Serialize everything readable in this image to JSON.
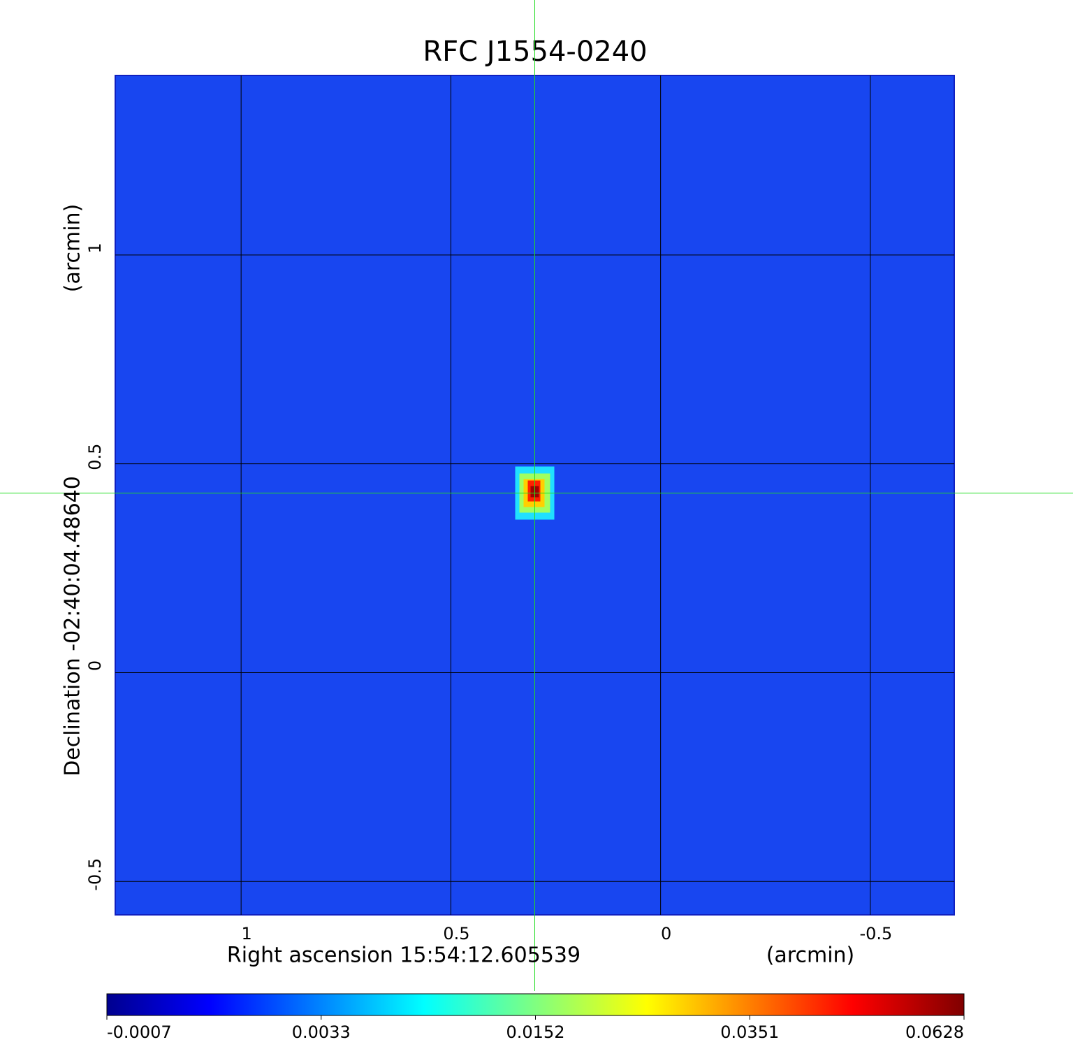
{
  "chart_data": {
    "type": "image",
    "title": "RFC J1554-0240",
    "title_color": "#1414d2",
    "x_label": "Right ascension  15:54:12.605539",
    "x_unit": "(arcmin)",
    "y_label": "Declination  -02:40:04.48640",
    "y_unit": "(arcmin)",
    "xlim": [
      1.3,
      -0.7
    ],
    "ylim": [
      -0.58,
      1.43
    ],
    "xticks": [
      1.0,
      0.5,
      0.0,
      -0.5
    ],
    "yticks": [
      1.0,
      0.5,
      0.0,
      -0.5
    ],
    "grid": true,
    "grid_color": "#000000",
    "background_color": "#1846f0",
    "crosshair_color": "#22dd22",
    "source": {
      "x": 0.3,
      "y": 0.43
    },
    "colorbar_ticks": [
      -0.0007,
      0.0033,
      0.0152,
      0.0351,
      0.0628
    ]
  }
}
